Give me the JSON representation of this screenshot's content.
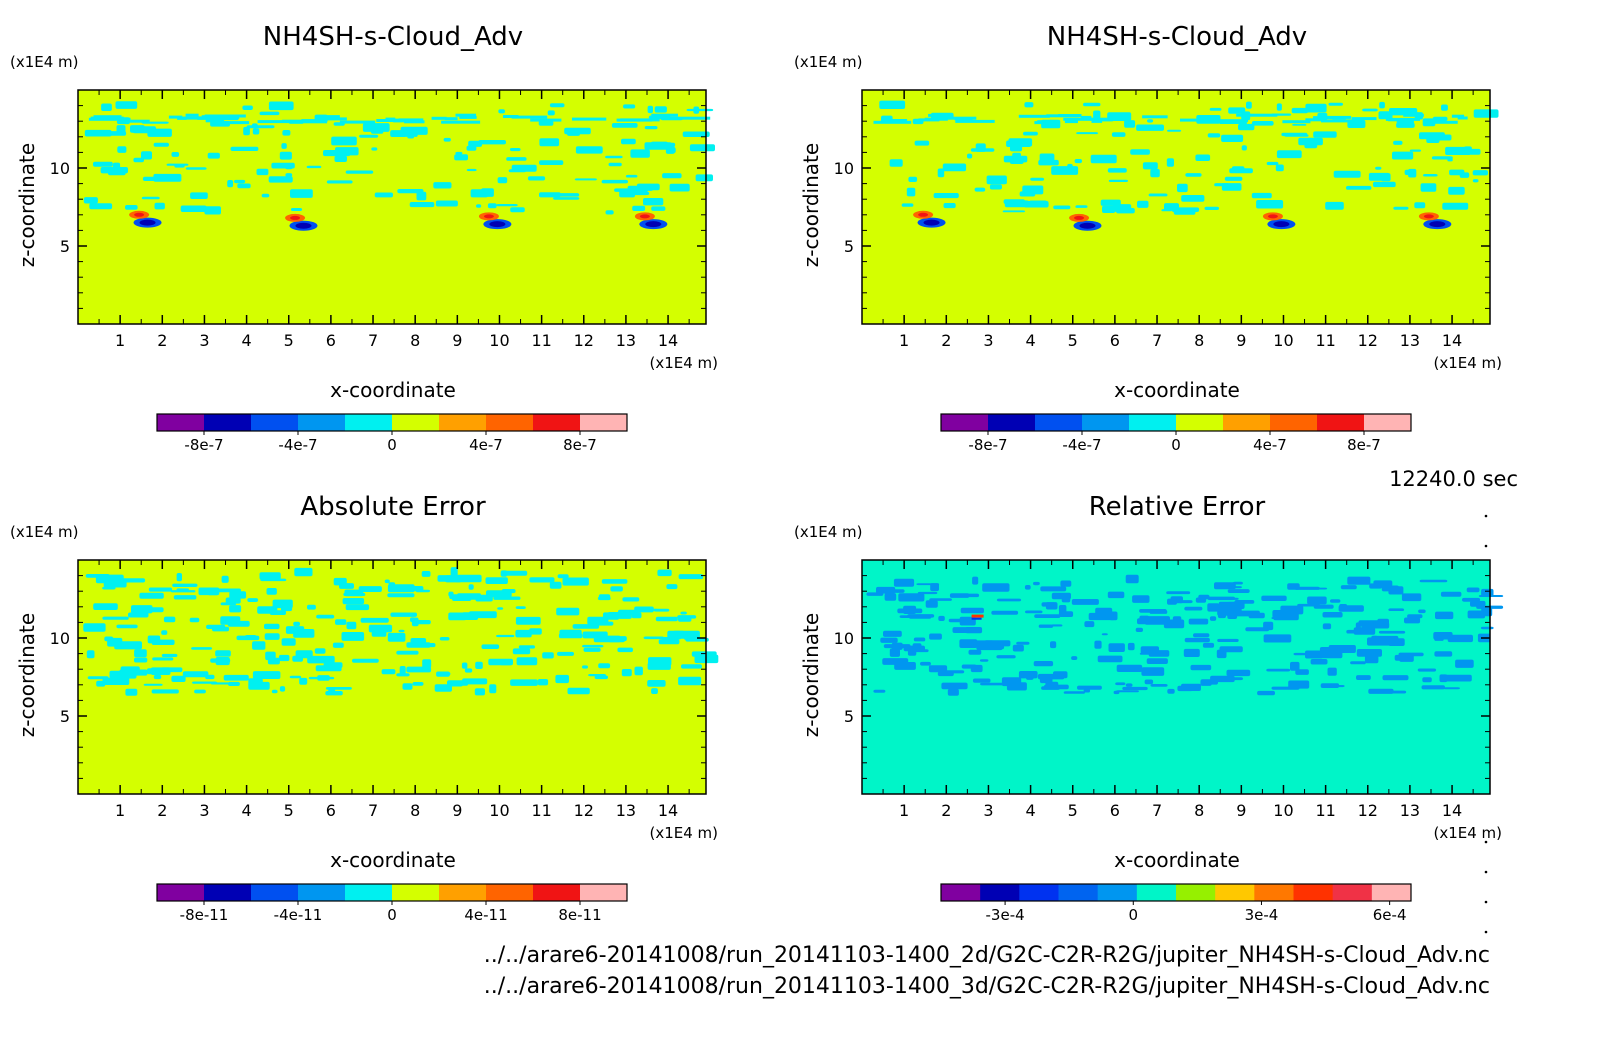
{
  "time_label": "12240.0 sec",
  "footer_lines": [
    "../../arare6-20141008/run_20141103-1400_2d/G2C-C2R-R2G/jupiter_NH4SH-s-Cloud_Adv.nc",
    "../../arare6-20141008/run_20141103-1400_3d/G2C-C2R-R2G/jupiter_NH4SH-s-Cloud_Adv.nc"
  ],
  "chart_data": [
    {
      "type": "heatmap",
      "title": "NH4SH-s-Cloud_Adv",
      "xlabel": "x-coordinate",
      "ylabel": "z-coordinate",
      "x_unit": "(x1E4 m)",
      "y_unit": "(x1E4 m)",
      "xlim": [
        0,
        14.9
      ],
      "ylim": [
        0,
        15
      ],
      "x_ticks": [
        1,
        2,
        3,
        4,
        5,
        6,
        7,
        8,
        9,
        10,
        11,
        12,
        13,
        14
      ],
      "y_ticks": [
        5,
        10
      ],
      "background": "#d4ff00",
      "colorbar": {
        "colors": [
          "#8000a0",
          "#0000b4",
          "#0050f0",
          "#0096f0",
          "#00f0f0",
          "#d4ff00",
          "#ffa000",
          "#ff6400",
          "#f01414",
          "#ffb4b4"
        ],
        "tick_labels": [
          "-8e-7",
          "-4e-7",
          "0",
          "4e-7",
          "8e-7"
        ],
        "tick_values": [
          -8e-07,
          -4e-07,
          0,
          4e-07,
          8e-07
        ],
        "range": [
          -1e-06,
          1e-06
        ]
      }
    },
    {
      "type": "heatmap",
      "title": "NH4SH-s-Cloud_Adv",
      "xlabel": "x-coordinate",
      "ylabel": "z-coordinate",
      "x_unit": "(x1E4 m)",
      "y_unit": "(x1E4 m)",
      "xlim": [
        0,
        14.9
      ],
      "ylim": [
        0,
        15
      ],
      "x_ticks": [
        1,
        2,
        3,
        4,
        5,
        6,
        7,
        8,
        9,
        10,
        11,
        12,
        13,
        14
      ],
      "y_ticks": [
        5,
        10
      ],
      "background": "#d4ff00",
      "colorbar": {
        "colors": [
          "#8000a0",
          "#0000b4",
          "#0050f0",
          "#0096f0",
          "#00f0f0",
          "#d4ff00",
          "#ffa000",
          "#ff6400",
          "#f01414",
          "#ffb4b4"
        ],
        "tick_labels": [
          "-8e-7",
          "-4e-7",
          "0",
          "4e-7",
          "8e-7"
        ],
        "tick_values": [
          -8e-07,
          -4e-07,
          0,
          4e-07,
          8e-07
        ],
        "range": [
          -1e-06,
          1e-06
        ]
      }
    },
    {
      "type": "heatmap",
      "title": "Absolute Error",
      "xlabel": "x-coordinate",
      "ylabel": "z-coordinate",
      "x_unit": "(x1E4 m)",
      "y_unit": "(x1E4 m)",
      "xlim": [
        0,
        14.9
      ],
      "ylim": [
        0,
        15
      ],
      "x_ticks": [
        1,
        2,
        3,
        4,
        5,
        6,
        7,
        8,
        9,
        10,
        11,
        12,
        13,
        14
      ],
      "y_ticks": [
        5,
        10
      ],
      "background": "#d4ff00",
      "colorbar": {
        "colors": [
          "#8000a0",
          "#0000b4",
          "#0050f0",
          "#0096f0",
          "#00f0f0",
          "#d4ff00",
          "#ffa000",
          "#ff6400",
          "#f01414",
          "#ffb4b4"
        ],
        "tick_labels": [
          "-8e-11",
          "-4e-11",
          "0",
          "4e-11",
          "8e-11"
        ],
        "tick_values": [
          -8e-11,
          -4e-11,
          0,
          4e-11,
          8e-11
        ],
        "range": [
          -1e-10,
          1e-10
        ]
      }
    },
    {
      "type": "heatmap",
      "title": "Relative Error",
      "xlabel": "x-coordinate",
      "ylabel": "z-coordinate",
      "x_unit": "(x1E4 m)",
      "y_unit": "(x1E4 m)",
      "xlim": [
        0,
        14.9
      ],
      "ylim": [
        0,
        15
      ],
      "x_ticks": [
        1,
        2,
        3,
        4,
        5,
        6,
        7,
        8,
        9,
        10,
        11,
        12,
        13,
        14
      ],
      "y_ticks": [
        5,
        10
      ],
      "background": "#00f5c8",
      "colorbar": {
        "colors": [
          "#8000a0",
          "#0000b4",
          "#0032f0",
          "#0064f0",
          "#0096f0",
          "#00f5c8",
          "#96f000",
          "#ffc800",
          "#ff7800",
          "#ff3200",
          "#f03246",
          "#ffb4b4"
        ],
        "tick_labels": [
          "-3e-4",
          "0",
          "3e-4",
          "6e-4"
        ],
        "tick_values": [
          -0.0003,
          0,
          0.0003,
          0.0006
        ],
        "range": [
          -0.00045,
          0.00065
        ]
      }
    }
  ]
}
